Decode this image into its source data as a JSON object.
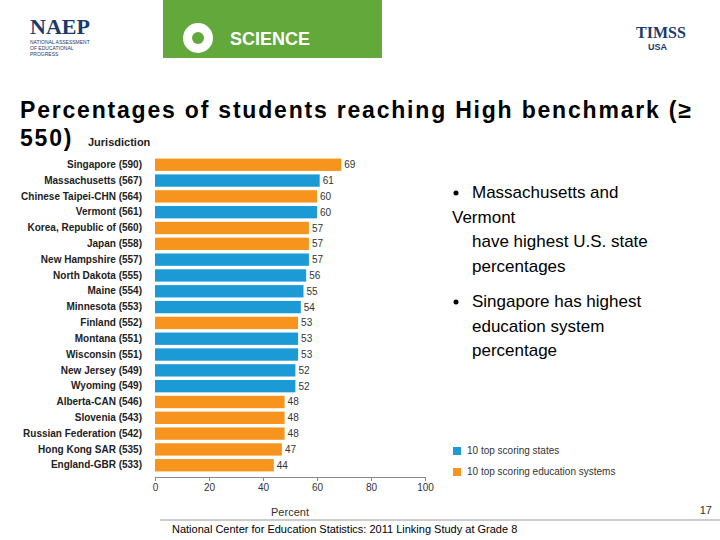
{
  "chart_data": {
    "type": "bar",
    "orientation": "horizontal",
    "title": "Percentages of students reaching High benchmark (≥ 550)",
    "y_label": "Jurisdiction",
    "x_label": "Percent",
    "categories": [
      "Singapore (590)",
      "Massachusetts (567)",
      "Chinese Taipei-CHN (564)",
      "Vermont (561)",
      "Korea, Republic of (560)",
      "Japan (558)",
      "New Hampshire (557)",
      "North Dakota (555)",
      "Maine (554)",
      "Minnesota (553)",
      "Finland (552)",
      "Montana (551)",
      "Wisconsin (551)",
      "New Jersey (549)",
      "Wyoming (549)",
      "Alberta-CAN (546)",
      "Slovenia (543)",
      "Russian Federation (542)",
      "Hong Kong SAR (535)",
      "England-GBR (533)"
    ],
    "series": [
      {
        "name": "10 top scoring states",
        "color": "#1c9ad6",
        "values": [
          null,
          61,
          null,
          60,
          null,
          null,
          57,
          56,
          55,
          54,
          null,
          53,
          53,
          52,
          52,
          null,
          null,
          null,
          null,
          null
        ]
      },
      {
        "name": "10 top scoring education systems",
        "color": "#f7941d",
        "values": [
          69,
          null,
          60,
          null,
          57,
          57,
          null,
          null,
          null,
          null,
          53,
          null,
          null,
          null,
          null,
          48,
          48,
          48,
          47,
          44
        ]
      }
    ],
    "xlim": [
      0,
      100
    ],
    "xticks": [
      0,
      20,
      40,
      60,
      80,
      100
    ],
    "data_labels": true,
    "legend": "lower right",
    "grid": false
  },
  "slide": {
    "header": {
      "naep": "NAEP",
      "naep_sub": [
        "NATIONAL ASSESSMENT",
        "OF EDUCATIONAL",
        "PROGRESS"
      ],
      "subject": "SCIENCE",
      "timss": "TIMSS",
      "timss_sub": "USA"
    },
    "bullets": [
      [
        "Massachusetts and",
        "Vermont",
        "have highest U.S. state",
        "percentages"
      ],
      [
        "Singapore has highest",
        "education system",
        "percentage"
      ]
    ],
    "page_number": "17",
    "footer": "National Center for Education Statistics: 2011 Linking Study at Grade 8"
  }
}
